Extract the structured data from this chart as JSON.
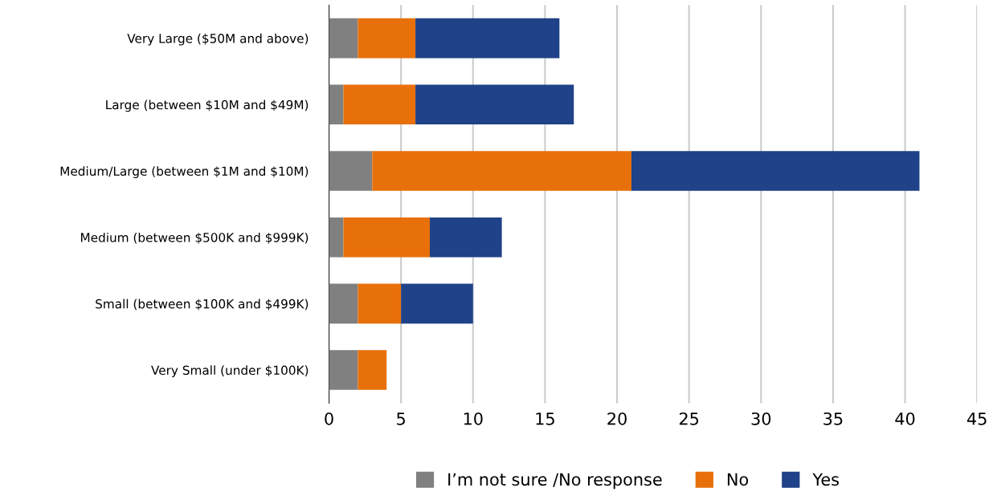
{
  "chart_data": {
    "type": "bar",
    "orientation": "horizontal",
    "stacked": true,
    "categories": [
      "Very Large ($50M and above)",
      "Large (between $10M and $49M)",
      "Medium/Large (between $1M and $10M)",
      "Medium (between $500K and $999K)",
      "Small (between $100K and $499K)",
      "Very Small (under $100K)"
    ],
    "series": [
      {
        "name": "I’m not sure /No response",
        "color": "#808080",
        "values": [
          2,
          1,
          3,
          1,
          2,
          2
        ]
      },
      {
        "name": "No",
        "color": "#e8700a",
        "values": [
          4,
          5,
          18,
          6,
          3,
          2
        ]
      },
      {
        "name": "Yes",
        "color": "#1f4288",
        "values": [
          10,
          11,
          20,
          5,
          5,
          0
        ]
      }
    ],
    "xlim": [
      0,
      45
    ],
    "xticks": [
      0,
      5,
      10,
      15,
      20,
      25,
      30,
      35,
      40,
      45
    ],
    "grid": "x",
    "legend": "bottom"
  }
}
